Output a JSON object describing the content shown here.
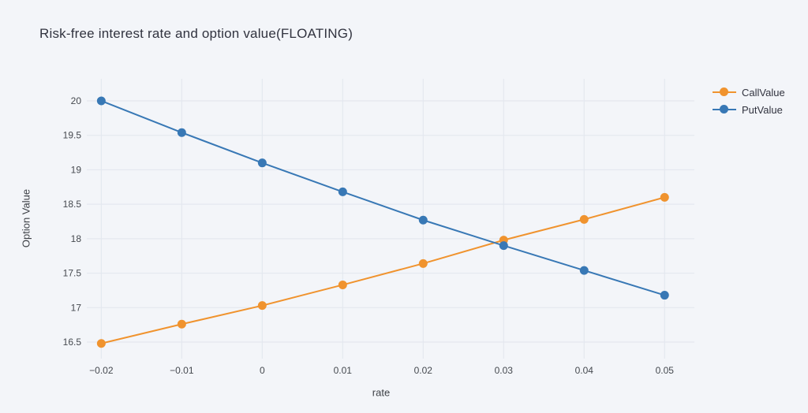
{
  "chart_data": {
    "type": "line",
    "title": "Risk-free interest rate and option value(FLOATING)",
    "xlabel": "rate",
    "ylabel": "Option Value",
    "x": [
      -0.02,
      -0.01,
      0,
      0.01,
      0.02,
      0.03,
      0.04,
      0.05
    ],
    "x_tick_labels": [
      "−0.02",
      "−0.01",
      "0",
      "0.01",
      "0.02",
      "0.03",
      "0.04",
      "0.05"
    ],
    "y_ticks": [
      16.5,
      17,
      17.5,
      18,
      18.5,
      19,
      19.5,
      20
    ],
    "y_tick_labels": [
      "16.5",
      "17",
      "17.5",
      "18",
      "18.5",
      "19",
      "19.5",
      "20"
    ],
    "xlim": [
      -0.0218,
      0.0537
    ],
    "ylim": [
      16.26,
      20.32
    ],
    "grid": true,
    "markers": true,
    "legend_position": "top-right",
    "series": [
      {
        "name": "CallValue",
        "color": "#f0932e",
        "values": [
          16.48,
          16.76,
          17.03,
          17.33,
          17.64,
          17.98,
          18.28,
          18.6
        ]
      },
      {
        "name": "PutValue",
        "color": "#3878b5",
        "values": [
          20.0,
          19.54,
          19.1,
          18.68,
          18.27,
          17.9,
          17.54,
          17.18
        ]
      }
    ]
  },
  "style": {
    "background": "#f3f5f9",
    "gridline_color": "#e4e8ef",
    "title_color": "#31333f",
    "tick_label_color": "#45494f"
  }
}
